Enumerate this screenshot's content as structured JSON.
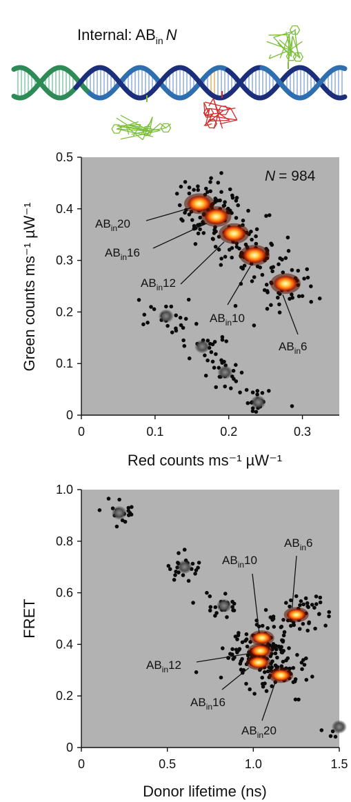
{
  "header": {
    "prefix": "Internal: AB",
    "subscript": "in",
    "suffix": "N"
  },
  "colors": {
    "panel_bg": "#b2b2b2",
    "dot": "#0a0a0a",
    "hot_core": "#fff7c0",
    "hot_mid": "#ff8a1a",
    "hot_edge": "#8a1a00",
    "strand_green": "#2e8b57",
    "strand_blue": "#2f6fb0",
    "strand_navy": "#1c2f7a",
    "dye_green": "#7cbf3a",
    "dye_red": "#d22a2a",
    "base_orange": "#e0952a"
  },
  "chart_data": [
    {
      "type": "scatter",
      "title": "",
      "annotation_prefix": "N",
      "annotation_value": "= 984",
      "xlabel": "Red counts ms⁻¹ µW⁻¹",
      "ylabel": "Green counts ms⁻¹ µW⁻¹",
      "xlim": [
        0,
        0.35
      ],
      "ylim": [
        0,
        0.5
      ],
      "xticks": [
        "0",
        "0.1",
        "0.2",
        "0.3"
      ],
      "xtick_values": [
        0,
        0.1,
        0.2,
        0.3
      ],
      "yticks": [
        "0",
        "0.1",
        "0.2",
        "0.3",
        "0.4",
        "0.5"
      ],
      "ytick_values": [
        0,
        0.1,
        0.2,
        0.3,
        0.4,
        0.5
      ],
      "clusters": [
        {
          "label": "AB",
          "sub": "in",
          "num": "20",
          "x": 0.16,
          "y": 0.41,
          "hot": true
        },
        {
          "label": "AB",
          "sub": "in",
          "num": "16",
          "x": 0.183,
          "y": 0.385,
          "hot": true
        },
        {
          "label": "AB",
          "sub": "in",
          "num": "12",
          "x": 0.207,
          "y": 0.352,
          "hot": true
        },
        {
          "label": "AB",
          "sub": "in",
          "num": "10",
          "x": 0.235,
          "y": 0.31,
          "hot": true
        },
        {
          "label": "AB",
          "sub": "in",
          "num": "6",
          "x": 0.277,
          "y": 0.255,
          "hot": true
        }
      ],
      "dark_clusters": [
        {
          "x": 0.115,
          "y": 0.192
        },
        {
          "x": 0.164,
          "y": 0.133
        },
        {
          "x": 0.195,
          "y": 0.083
        },
        {
          "x": 0.24,
          "y": 0.025
        }
      ]
    },
    {
      "type": "scatter",
      "title": "",
      "xlabel": "Donor lifetime (ns)",
      "ylabel": "FRET",
      "xlim": [
        0,
        1.5
      ],
      "ylim": [
        0,
        1.0
      ],
      "xticks": [
        "0",
        "0.5",
        "1.0",
        "1.5"
      ],
      "xtick_values": [
        0,
        0.5,
        1.0,
        1.5
      ],
      "yticks": [
        "0",
        "0.2",
        "0.4",
        "0.6",
        "0.8",
        "1.0"
      ],
      "ytick_values": [
        0,
        0.2,
        0.4,
        0.6,
        0.8,
        1.0
      ],
      "clusters": [
        {
          "label": "AB",
          "sub": "in",
          "num": "6",
          "x": 1.25,
          "y": 0.515,
          "hot": true
        },
        {
          "label": "AB",
          "sub": "in",
          "num": "10",
          "x": 1.05,
          "y": 0.425,
          "hot": true
        },
        {
          "label": "AB",
          "sub": "in",
          "num": "12",
          "x": 1.04,
          "y": 0.375,
          "hot": true
        },
        {
          "label": "AB",
          "sub": "in",
          "num": "16",
          "x": 1.03,
          "y": 0.33,
          "hot": true
        },
        {
          "label": "AB",
          "sub": "in",
          "num": "20",
          "x": 1.16,
          "y": 0.28,
          "hot": true
        }
      ],
      "dark_clusters": [
        {
          "x": 0.22,
          "y": 0.91
        },
        {
          "x": 0.6,
          "y": 0.7
        },
        {
          "x": 0.83,
          "y": 0.55
        },
        {
          "x": 1.5,
          "y": 0.08
        }
      ]
    }
  ]
}
